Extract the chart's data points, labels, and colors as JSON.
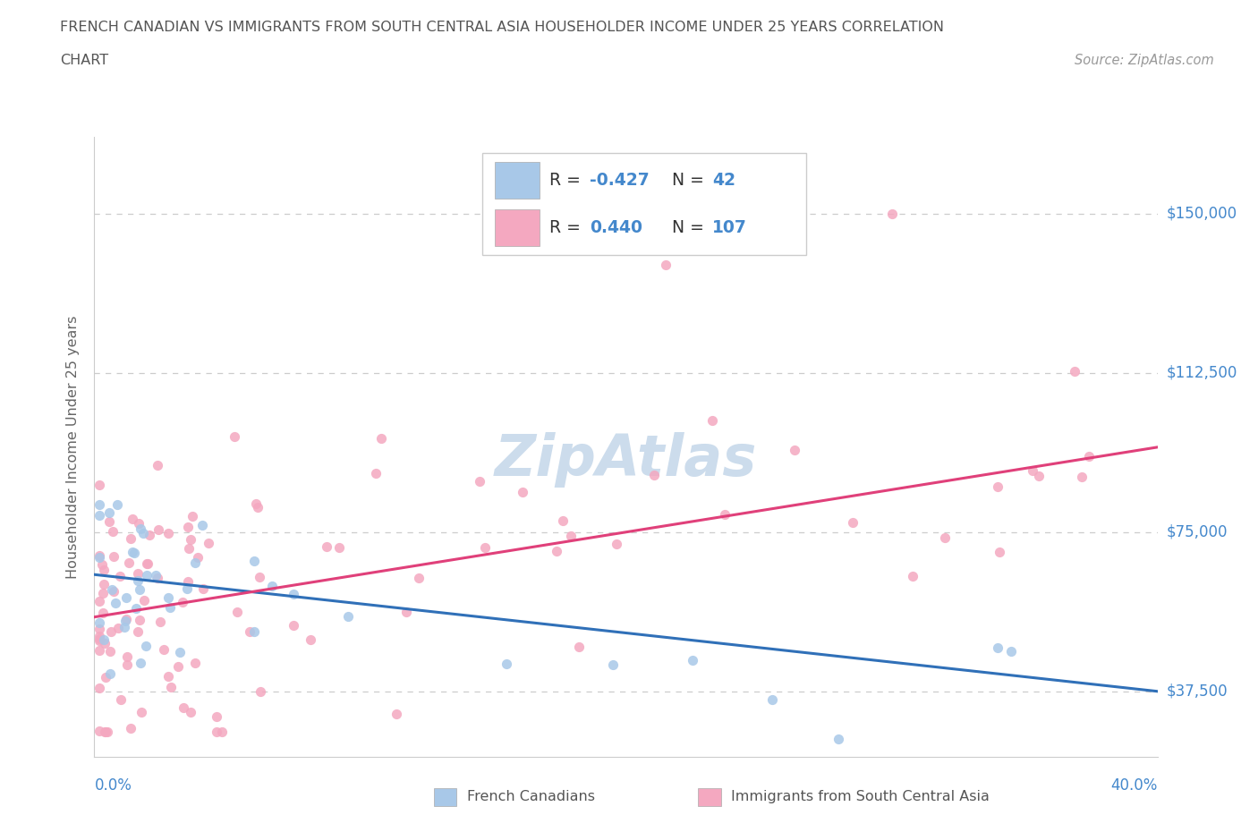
{
  "title_line1": "FRENCH CANADIAN VS IMMIGRANTS FROM SOUTH CENTRAL ASIA HOUSEHOLDER INCOME UNDER 25 YEARS CORRELATION",
  "title_line2": "CHART",
  "source": "Source: ZipAtlas.com",
  "ylabel": "Householder Income Under 25 years",
  "xlim": [
    0.0,
    0.4
  ],
  "ylim": [
    22000,
    168000
  ],
  "yticks": [
    37500,
    75000,
    112500,
    150000
  ],
  "ytick_labels": [
    "$37,500",
    "$75,000",
    "$112,500",
    "$150,000"
  ],
  "blue_color": "#a8c8e8",
  "pink_color": "#f4a8c0",
  "blue_line_color": "#3070b8",
  "pink_line_color": "#e0407a",
  "watermark_color": "#ccdcec",
  "label_color": "#4488cc",
  "grid_color": "#cccccc",
  "title_color": "#555555",
  "source_color": "#999999",
  "legend_r1_val": "-0.427",
  "legend_n1_val": "42",
  "legend_r2_val": "0.440",
  "legend_n2_val": "107",
  "blue_trend_x0": 0.0,
  "blue_trend_x1": 0.4,
  "blue_trend_y0": 65000,
  "blue_trend_y1": 37500,
  "pink_trend_x0": 0.0,
  "pink_trend_x1": 0.4,
  "pink_trend_y0": 55000,
  "pink_trend_y1": 95000
}
